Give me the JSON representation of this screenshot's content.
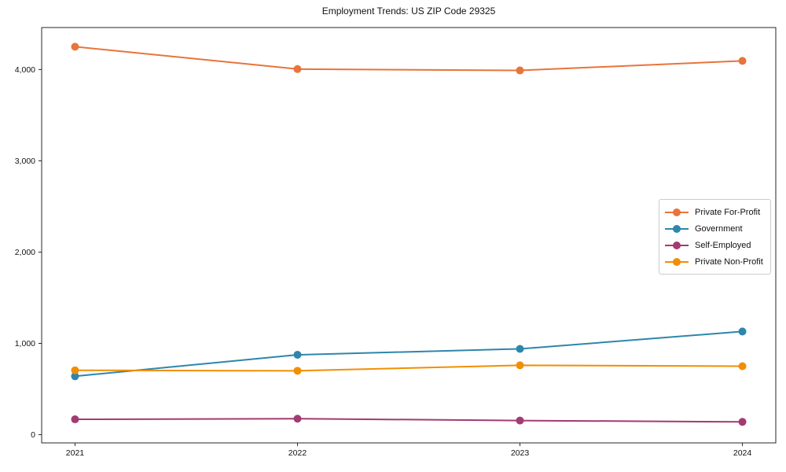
{
  "chart_data": {
    "type": "line",
    "title": "Employment Trends: US ZIP Code 29325",
    "x": [
      2021,
      2022,
      2023,
      2024
    ],
    "x_labels": [
      "2021",
      "2022",
      "2023",
      "2024"
    ],
    "series": [
      {
        "name": "Private For-Profit",
        "color": "#E8743B",
        "values": [
          4250,
          4005,
          3990,
          4095
        ]
      },
      {
        "name": "Government",
        "color": "#2E86AB",
        "values": [
          640,
          875,
          940,
          1130
        ]
      },
      {
        "name": "Self-Employed",
        "color": "#A23B72",
        "values": [
          168,
          175,
          155,
          140
        ]
      },
      {
        "name": "Private Non-Profit",
        "color": "#F18F01",
        "values": [
          705,
          700,
          760,
          750
        ]
      }
    ],
    "yticks": [
      0,
      1000,
      2000,
      3000,
      4000
    ],
    "ytick_labels": [
      "0",
      "1,000",
      "2,000",
      "3,000",
      "4,000"
    ],
    "ylim": [
      -90,
      4460
    ],
    "xlim": [
      2020.85,
      2024.15
    ],
    "xlabel": "",
    "ylabel": "",
    "grid": false,
    "legend_position": "right-middle",
    "marker": "circle",
    "marker_radius": 5,
    "line_width": 2
  }
}
